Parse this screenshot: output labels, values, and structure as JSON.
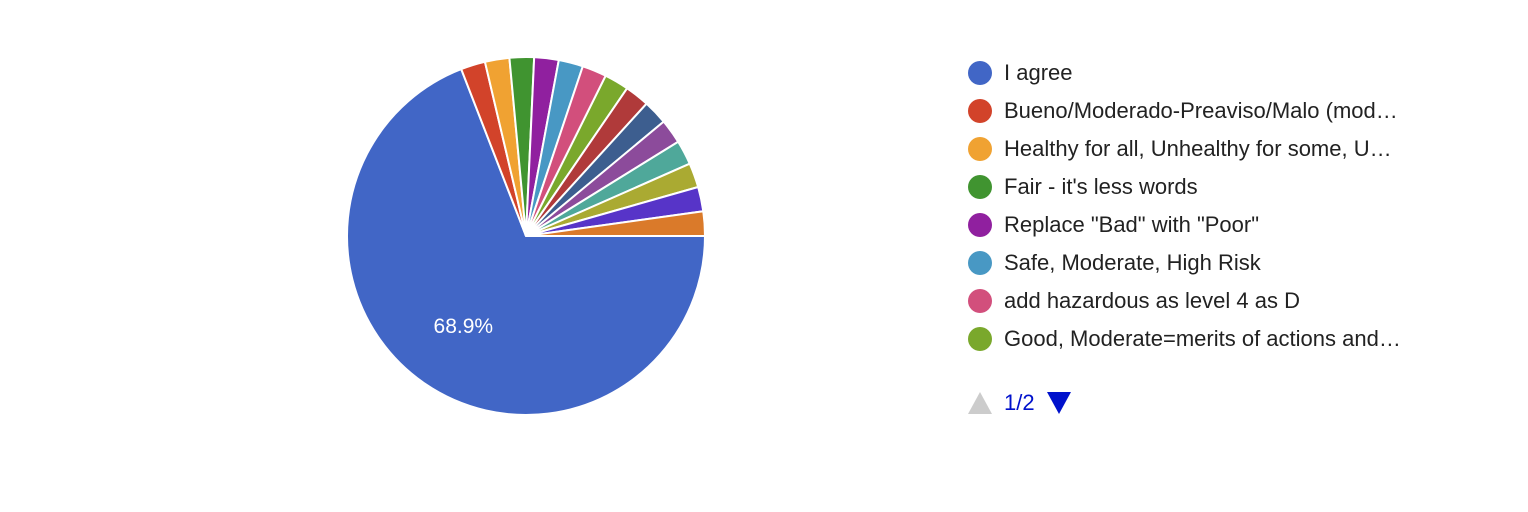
{
  "chart_data": {
    "type": "pie",
    "slices": [
      {
        "label": "I agree",
        "value": 68.9,
        "color": "#4166c6",
        "display_label": "68.9%"
      },
      {
        "label": "Bueno/Moderado-Preaviso/Malo (mod…",
        "value": 2.2,
        "color": "#d2432a"
      },
      {
        "label": "Healthy for all, Unhealthy for some, U…",
        "value": 2.2,
        "color": "#f0a232"
      },
      {
        "label": "Fair - it's less words",
        "value": 2.2,
        "color": "#409430"
      },
      {
        "label": "Replace \"Bad\" with \"Poor\"",
        "value": 2.2,
        "color": "#90209f"
      },
      {
        "label": "Safe, Moderate, High Risk",
        "value": 2.2,
        "color": "#4898c4"
      },
      {
        "label": "add hazardous as level 4 as D",
        "value": 2.2,
        "color": "#d24f7c"
      },
      {
        "label": "Good, Moderate=merits of actions and…",
        "value": 2.2,
        "color": "#7aa82c"
      },
      {
        "value": 2.2,
        "color": "#b03a3a"
      },
      {
        "value": 2.2,
        "color": "#3d5e8f"
      },
      {
        "value": 2.2,
        "color": "#8c4b9b"
      },
      {
        "value": 2.2,
        "color": "#4fa89a"
      },
      {
        "value": 2.2,
        "color": "#aaaa32"
      },
      {
        "value": 2.2,
        "color": "#5734c8"
      },
      {
        "value": 2.2,
        "color": "#da7a2a"
      }
    ],
    "legend_placement": "right"
  },
  "legend": {
    "items": [
      {
        "label": "I agree",
        "color": "#4166c6"
      },
      {
        "label": "Bueno/Moderado-Preaviso/Malo (mod…",
        "color": "#d2432a"
      },
      {
        "label": "Healthy for all, Unhealthy for some, U…",
        "color": "#f0a232"
      },
      {
        "label": "Fair - it's less words",
        "color": "#409430"
      },
      {
        "label": "Replace \"Bad\" with \"Poor\"",
        "color": "#90209f"
      },
      {
        "label": "Safe, Moderate, High Risk",
        "color": "#4898c4"
      },
      {
        "label": "add hazardous as level 4 as D",
        "color": "#d24f7c"
      },
      {
        "label": "Good, Moderate=merits of actions and…",
        "color": "#7aa82c"
      }
    ]
  },
  "pager": {
    "text": "1/2",
    "up_icon": "triangle-up-icon",
    "down_icon": "triangle-down-icon"
  }
}
